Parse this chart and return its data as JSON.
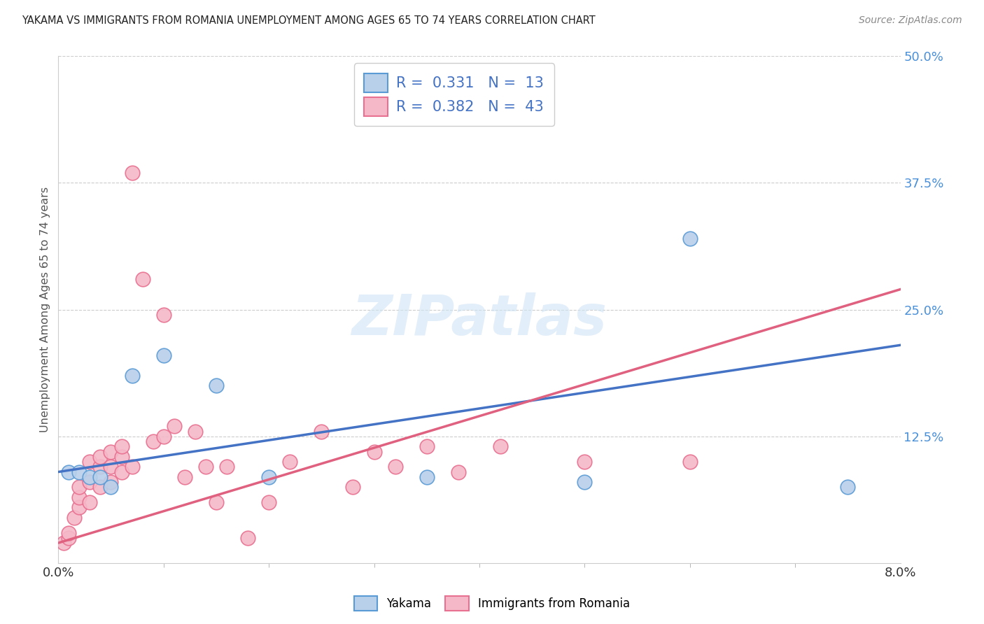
{
  "title": "YAKAMA VS IMMIGRANTS FROM ROMANIA UNEMPLOYMENT AMONG AGES 65 TO 74 YEARS CORRELATION CHART",
  "source": "Source: ZipAtlas.com",
  "ylabel": "Unemployment Among Ages 65 to 74 years",
  "series1_name": "Yakama",
  "series2_name": "Immigrants from Romania",
  "series1_color": "#b8d0ea",
  "series2_color": "#f5b8c8",
  "series1_edge_color": "#5b9bd5",
  "series2_edge_color": "#e87090",
  "series1_line_color": "#4472c4",
  "series2_line_color": "#e06080",
  "legend_r1": "R = ",
  "legend_r1_val": "0.331",
  "legend_n1": "  N = ",
  "legend_n1_val": "13",
  "legend_r2": "R = ",
  "legend_r2_val": "0.382",
  "legend_n2": "  N = ",
  "legend_n2_val": "43",
  "watermark": "ZIPatlas",
  "background_color": "#ffffff",
  "grid_color": "#cccccc",
  "xlim": [
    0.0,
    0.08
  ],
  "ylim": [
    0.0,
    0.5
  ],
  "yticks": [
    0.0,
    0.125,
    0.25,
    0.375,
    0.5
  ],
  "ytick_labels": [
    "",
    "12.5%",
    "25.0%",
    "37.5%",
    "50.0%"
  ],
  "xtick_left": "0.0%",
  "xtick_right": "8.0%",
  "yakama_x": [
    0.001,
    0.002,
    0.003,
    0.004,
    0.005,
    0.007,
    0.01,
    0.015,
    0.02,
    0.035,
    0.05,
    0.06,
    0.075
  ],
  "yakama_y": [
    0.09,
    0.09,
    0.085,
    0.085,
    0.075,
    0.185,
    0.205,
    0.175,
    0.085,
    0.085,
    0.08,
    0.32,
    0.075
  ],
  "romania_x": [
    0.0005,
    0.001,
    0.001,
    0.0015,
    0.002,
    0.002,
    0.002,
    0.003,
    0.003,
    0.003,
    0.004,
    0.004,
    0.004,
    0.005,
    0.005,
    0.005,
    0.006,
    0.006,
    0.006,
    0.007,
    0.007,
    0.008,
    0.009,
    0.01,
    0.01,
    0.011,
    0.012,
    0.013,
    0.014,
    0.015,
    0.016,
    0.018,
    0.02,
    0.022,
    0.025,
    0.028,
    0.03,
    0.032,
    0.035,
    0.038,
    0.042,
    0.05,
    0.06
  ],
  "romania_y": [
    0.02,
    0.025,
    0.03,
    0.045,
    0.055,
    0.065,
    0.075,
    0.06,
    0.08,
    0.1,
    0.075,
    0.095,
    0.105,
    0.08,
    0.095,
    0.11,
    0.09,
    0.105,
    0.115,
    0.095,
    0.385,
    0.28,
    0.12,
    0.125,
    0.245,
    0.135,
    0.085,
    0.13,
    0.095,
    0.06,
    0.095,
    0.025,
    0.06,
    0.1,
    0.13,
    0.075,
    0.11,
    0.095,
    0.115,
    0.09,
    0.115,
    0.1,
    0.1
  ],
  "trend_yakama_x0": 0.0,
  "trend_yakama_x1": 0.08,
  "trend_yakama_y0": 0.09,
  "trend_yakama_y1": 0.215,
  "trend_romania_x0": 0.0,
  "trend_romania_x1": 0.08,
  "trend_romania_y0": 0.02,
  "trend_romania_y1": 0.27
}
